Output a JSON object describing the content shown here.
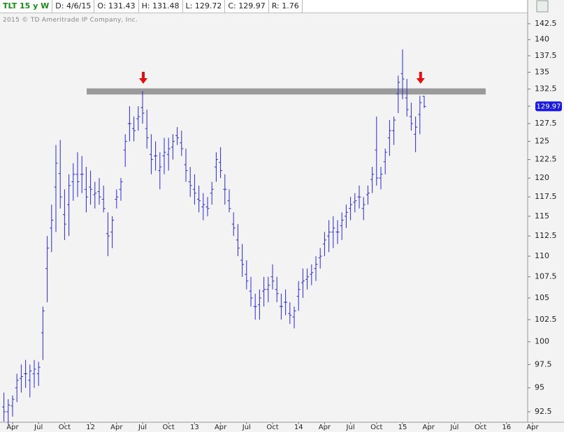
{
  "chart_data": {
    "type": "ohlc",
    "header": [
      "TLT 15 y W",
      "D: 4/6/15",
      "O: 131.43",
      "H: 131.48",
      "L: 129.72",
      "C: 129.97",
      "R: 1.76"
    ],
    "note": "2015 © TD Ameritrade IP Company, Inc.",
    "color": "#2a2ad0",
    "log_scale": true,
    "ylim": [
      91.43,
      144.28
    ],
    "yticks": [
      92.5,
      95,
      97.5,
      100,
      102.5,
      105,
      107.5,
      110,
      112.5,
      115,
      117.5,
      120,
      122.5,
      125,
      127.5,
      130,
      132.5,
      135,
      137.5,
      140,
      142.5
    ],
    "categories": [
      null,
      null,
      "Apr",
      null,
      null,
      null,
      null,
      null,
      "Jul",
      null,
      null,
      null,
      null,
      null,
      "Oct",
      null,
      null,
      null,
      null,
      null,
      "12",
      null,
      null,
      null,
      null,
      null,
      "Apr",
      null,
      null,
      null,
      null,
      null,
      "Jul",
      null,
      null,
      null,
      null,
      null,
      "Oct",
      null,
      null,
      null,
      null,
      null,
      "13",
      null,
      null,
      null,
      null,
      null,
      "Apr",
      null,
      null,
      null,
      null,
      null,
      "Jul",
      null,
      null,
      null,
      null,
      null,
      "Oct",
      null,
      null,
      null,
      null,
      null,
      "14",
      null,
      null,
      null,
      null,
      null,
      "Apr",
      null,
      null,
      null,
      null,
      null,
      "Jul",
      null,
      null,
      null,
      null,
      null,
      "Oct",
      null,
      null,
      null,
      null,
      null,
      "15",
      null,
      null,
      null,
      null,
      null,
      "Apr",
      null,
      null,
      null,
      null,
      null,
      "Jul",
      null,
      null,
      null,
      null,
      null,
      "Oct",
      null,
      null,
      null,
      null,
      null,
      "16",
      null,
      null,
      null,
      null,
      null,
      "Apr"
    ],
    "open": [
      93.0,
      92.5,
      93.1,
      95.0,
      96.0,
      96.5,
      95.8,
      96.5,
      96.5,
      101.0,
      108.5,
      113.5,
      118.8,
      120.6,
      115.2,
      116.5,
      119.5,
      120.5,
      120.5,
      118.5,
      118.8,
      117.8,
      118.2,
      117.2,
      112.8,
      113.0,
      117.2,
      118.5,
      123.8,
      127.5,
      126.8,
      128.2,
      129.8,
      126.8,
      123.2,
      123.0,
      121.0,
      123.0,
      123.2,
      124.2,
      125.8,
      124.8,
      121.8,
      119.5,
      118.5,
      117.2,
      116.2,
      116.2,
      118.0,
      121.5,
      122.1,
      118.5,
      117.0,
      114.0,
      112.0,
      109.5,
      107.8,
      105.8,
      104.0,
      104.2,
      105.8,
      106.0,
      107.5,
      106.0,
      104.0,
      104.5,
      103.2,
      102.8,
      105.2,
      106.8,
      107.2,
      107.8,
      108.5,
      109.8,
      111.5,
      112.5,
      113.0,
      113.0,
      113.8,
      115.0,
      116.0,
      116.8,
      117.5,
      116.0,
      117.8,
      119.8,
      123.8,
      120.0,
      122.2,
      125.5,
      126.5,
      131.8,
      134.8,
      131.2,
      128.5,
      126.0,
      128.8,
      131.43,
      null,
      null,
      null,
      null,
      null,
      null,
      null,
      null,
      null,
      null,
      null,
      null,
      null,
      null,
      null,
      null,
      null,
      null,
      null,
      null,
      null,
      null,
      null,
      null,
      null
    ],
    "high": [
      94.5,
      93.8,
      94.2,
      96.5,
      97.5,
      98.0,
      97.5,
      98.0,
      97.8,
      104.0,
      112.5,
      116.5,
      124.5,
      125.2,
      118.5,
      120.5,
      122.0,
      123.5,
      123.0,
      121.5,
      121.0,
      119.5,
      120.0,
      119.0,
      115.5,
      115.0,
      118.5,
      120.0,
      126.0,
      130.0,
      128.5,
      130.0,
      132.2,
      129.5,
      126.0,
      125.0,
      123.5,
      125.5,
      125.5,
      126.0,
      127.0,
      126.5,
      124.0,
      121.5,
      120.5,
      119.0,
      118.0,
      117.5,
      119.5,
      123.5,
      124.2,
      120.5,
      118.5,
      115.5,
      114.0,
      111.5,
      109.5,
      107.5,
      105.5,
      106.0,
      107.5,
      107.5,
      109.0,
      107.5,
      105.5,
      106.0,
      104.5,
      104.0,
      107.0,
      108.5,
      108.5,
      109.0,
      110.0,
      111.0,
      113.0,
      114.5,
      115.0,
      114.5,
      115.5,
      116.5,
      117.5,
      118.0,
      119.0,
      117.5,
      119.0,
      121.5,
      128.5,
      121.5,
      124.0,
      128.0,
      128.5,
      134.5,
      138.5,
      134.0,
      130.5,
      128.5,
      131.5,
      131.48,
      null,
      null,
      null,
      null,
      null,
      null,
      null,
      null,
      null,
      null,
      null,
      null,
      null,
      null,
      null,
      null,
      null,
      null,
      null,
      null,
      null,
      null,
      null,
      null,
      null
    ],
    "low": [
      91.5,
      91.2,
      92.0,
      93.5,
      94.5,
      95.0,
      94.0,
      95.0,
      95.2,
      98.0,
      104.5,
      110.5,
      113.0,
      116.0,
      112.0,
      112.5,
      117.0,
      117.5,
      118.0,
      115.5,
      116.5,
      116.0,
      116.5,
      115.5,
      110.0,
      111.0,
      116.0,
      117.0,
      121.5,
      125.0,
      125.0,
      126.5,
      127.5,
      124.0,
      120.5,
      121.0,
      118.5,
      120.5,
      121.0,
      122.5,
      124.5,
      123.0,
      119.5,
      117.5,
      116.5,
      115.5,
      114.5,
      115.0,
      116.5,
      119.5,
      120.0,
      116.5,
      115.5,
      112.5,
      110.0,
      107.5,
      106.0,
      104.0,
      102.5,
      102.5,
      104.0,
      104.5,
      106.0,
      104.5,
      102.5,
      103.0,
      102.0,
      101.5,
      103.5,
      105.0,
      106.0,
      106.5,
      107.0,
      108.5,
      110.0,
      110.5,
      111.0,
      111.5,
      112.0,
      113.5,
      114.5,
      115.5,
      116.0,
      114.5,
      116.5,
      118.0,
      119.0,
      118.5,
      120.5,
      123.0,
      124.5,
      129.0,
      131.0,
      128.5,
      126.5,
      123.5,
      126.0,
      129.72,
      null,
      null,
      null,
      null,
      null,
      null,
      null,
      null,
      null,
      null,
      null,
      null,
      null,
      null,
      null,
      null,
      null,
      null,
      null,
      null,
      null,
      null,
      null,
      null,
      null
    ],
    "close": [
      92.5,
      93.2,
      93.8,
      95.8,
      96.2,
      96.5,
      96.8,
      97.0,
      97.2,
      103.5,
      111.0,
      114.5,
      122.0,
      117.5,
      114.0,
      119.0,
      120.5,
      119.5,
      120.5,
      117.5,
      118.5,
      118.0,
      117.5,
      116.0,
      112.5,
      114.5,
      117.5,
      119.5,
      125.0,
      127.5,
      126.5,
      128.5,
      129.0,
      125.5,
      122.5,
      123.0,
      121.5,
      123.5,
      124.0,
      125.0,
      125.5,
      124.0,
      121.0,
      119.0,
      118.0,
      117.0,
      116.5,
      116.0,
      118.5,
      122.5,
      121.0,
      118.5,
      116.0,
      113.5,
      111.0,
      109.0,
      107.0,
      105.0,
      104.0,
      105.0,
      106.0,
      106.5,
      107.0,
      105.5,
      104.0,
      104.5,
      103.0,
      103.5,
      106.0,
      107.0,
      107.5,
      108.0,
      109.0,
      110.0,
      112.0,
      113.0,
      113.5,
      113.0,
      114.5,
      115.5,
      116.5,
      117.0,
      117.5,
      116.5,
      118.0,
      120.5,
      120.0,
      120.5,
      123.5,
      126.5,
      128.0,
      133.5,
      134.0,
      129.5,
      127.5,
      127.0,
      130.5,
      129.97,
      null,
      null,
      null,
      null,
      null,
      null,
      null,
      null,
      null,
      null,
      null,
      null,
      null,
      null,
      null,
      null,
      null,
      null,
      null,
      null,
      null,
      null,
      null,
      null,
      null
    ],
    "band": [
      131.7,
      132.6
    ]
  }
}
